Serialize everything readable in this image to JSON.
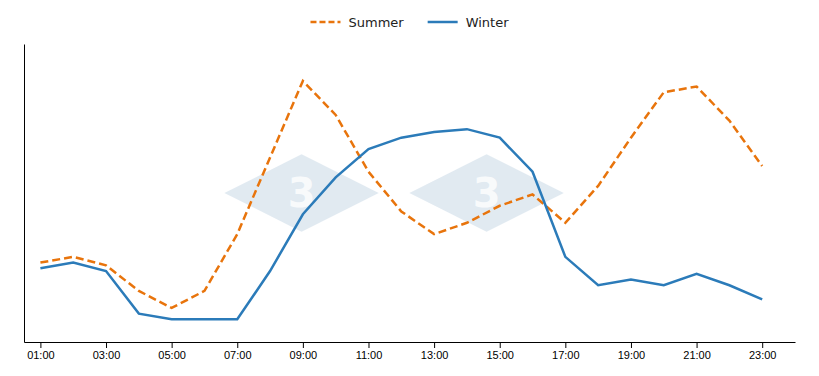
{
  "chart_data": {
    "type": "line",
    "x": [
      1,
      2,
      3,
      4,
      5,
      6,
      7,
      8,
      9,
      10,
      11,
      12,
      13,
      14,
      15,
      16,
      17,
      18,
      19,
      20,
      21,
      22,
      23
    ],
    "series": [
      {
        "name": "Summer",
        "color": "#E8740C",
        "line_style": "dashed",
        "values": [
          0.28,
          0.3,
          0.27,
          0.18,
          0.12,
          0.18,
          0.38,
          0.65,
          0.92,
          0.8,
          0.6,
          0.46,
          0.38,
          0.42,
          0.48,
          0.52,
          0.42,
          0.55,
          0.72,
          0.88,
          0.9,
          0.78,
          0.62
        ]
      },
      {
        "name": "Winter",
        "color": "#2B7BB9",
        "line_style": "solid",
        "values": [
          0.26,
          0.28,
          0.25,
          0.1,
          0.08,
          0.08,
          0.08,
          0.25,
          0.45,
          0.58,
          0.68,
          0.72,
          0.74,
          0.75,
          0.72,
          0.6,
          0.3,
          0.2,
          0.22,
          0.2,
          0.24,
          0.2,
          0.15
        ]
      }
    ],
    "xlim": [
      0.5,
      24.0
    ],
    "ylim": [
      0,
      1.05
    ],
    "xticks": [
      {
        "value": 1,
        "label": "01:00"
      },
      {
        "value": 3,
        "label": "03:00"
      },
      {
        "value": 5,
        "label": "05:00"
      },
      {
        "value": 7,
        "label": "07:00"
      },
      {
        "value": 9,
        "label": "09:00"
      },
      {
        "value": 11,
        "label": "11:00"
      },
      {
        "value": 13,
        "label": "13:00"
      },
      {
        "value": 15,
        "label": "15:00"
      },
      {
        "value": 17,
        "label": "17:00"
      },
      {
        "value": 19,
        "label": "19:00"
      },
      {
        "value": 21,
        "label": "21:00"
      },
      {
        "value": 23,
        "label": "23:00"
      }
    ],
    "yticks": [],
    "tick_labels": "x",
    "grid": false,
    "legend": "upper center",
    "annotations": [
      "3",
      "3"
    ]
  }
}
